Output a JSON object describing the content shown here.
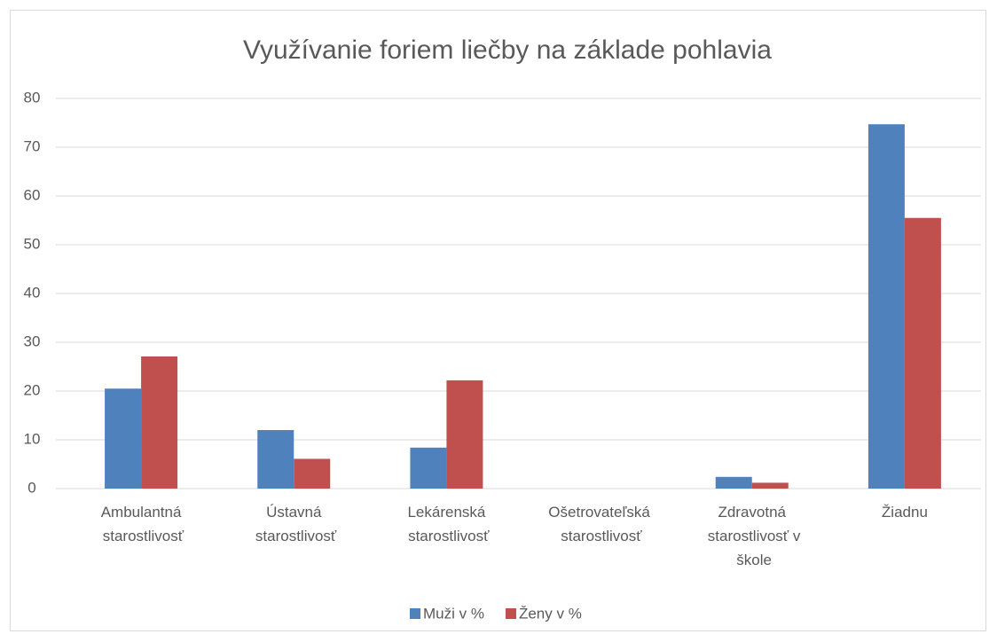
{
  "chart_data": {
    "type": "bar",
    "title": "Využívanie foriem liečby na základe pohlavia",
    "categories": [
      "Ambulantná starostlivosť",
      "Ústavná starostlivosť",
      "Lekárenská starostlivosť",
      "Ošetrovateľská starostlivosť",
      "Zdravotná starostlivosť v škole",
      "Žiadnu"
    ],
    "series": [
      {
        "name": "Muži v %",
        "color": "#4f81bd",
        "values": [
          20.5,
          12,
          8.4,
          0,
          2.4,
          74.7
        ]
      },
      {
        "name": "Ženy v %",
        "color": "#c0504d",
        "values": [
          27.1,
          6.1,
          22.2,
          0,
          1.2,
          55.5
        ]
      }
    ],
    "ylim": [
      0,
      80
    ],
    "yticks": [
      0,
      10,
      20,
      30,
      40,
      50,
      60,
      70,
      80
    ],
    "grid": true,
    "legend": "bottom"
  }
}
